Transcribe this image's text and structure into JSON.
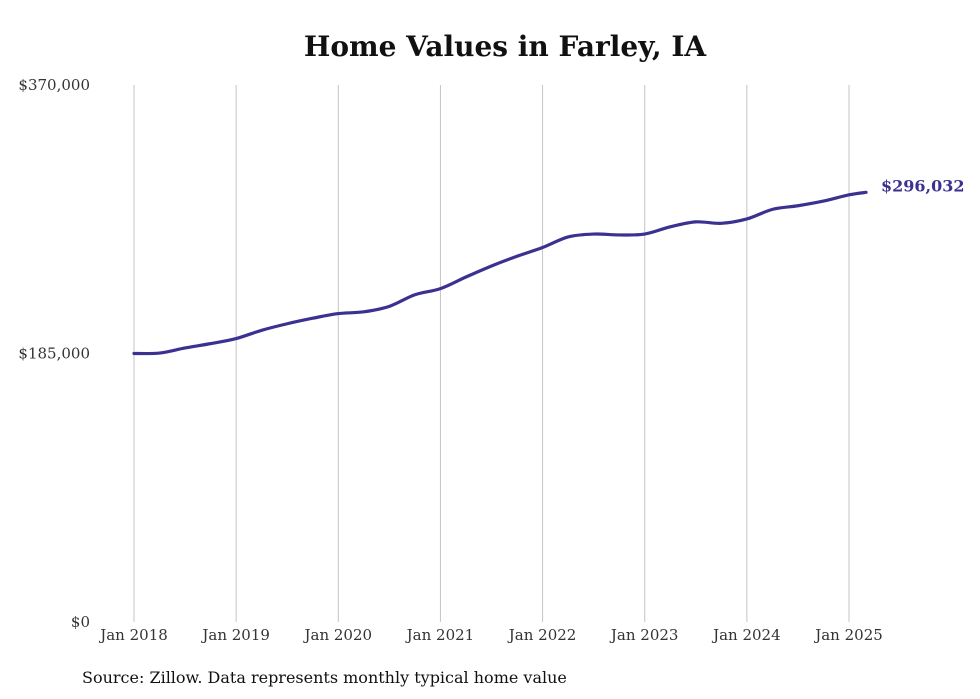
{
  "chart_data": {
    "type": "line",
    "title": "Home Values in Farley, IA",
    "xlabel": "",
    "ylabel": "",
    "ylim": [
      0,
      370000
    ],
    "y_ticks": [
      "$0",
      "$185,000",
      "$370,000"
    ],
    "y_tick_values": [
      0,
      185000,
      370000
    ],
    "x_ticks": [
      "Jan 2018",
      "Jan 2019",
      "Jan 2020",
      "Jan 2021",
      "Jan 2022",
      "Jan 2023",
      "Jan 2024",
      "Jan 2025"
    ],
    "x_tick_dates": [
      "2018-01",
      "2019-01",
      "2020-01",
      "2021-01",
      "2022-01",
      "2023-01",
      "2024-01",
      "2025-01"
    ],
    "grid": "vertical",
    "line_color": "#3b3191",
    "end_label": "$296,032",
    "series": [
      {
        "x": [
          "2018-01",
          "2018-04",
          "2018-07",
          "2018-10",
          "2019-01",
          "2019-04",
          "2019-07",
          "2019-10",
          "2020-01",
          "2020-04",
          "2020-07",
          "2020-10",
          "2021-01",
          "2021-04",
          "2021-07",
          "2021-10",
          "2022-01",
          "2022-04",
          "2022-07",
          "2022-10",
          "2023-01",
          "2023-04",
          "2023-07",
          "2023-10",
          "2024-01",
          "2024-04",
          "2024-07",
          "2024-10",
          "2025-01",
          "2025-03"
        ],
        "values": [
          185000,
          185300,
          188800,
          191800,
          195300,
          201000,
          205500,
          209300,
          212500,
          213700,
          217500,
          225500,
          229700,
          237700,
          245300,
          252000,
          258000,
          265300,
          267300,
          266700,
          267300,
          272300,
          275700,
          274700,
          277700,
          284300,
          286800,
          290000,
          294300,
          296032
        ]
      }
    ]
  },
  "source_note": "Source: Zillow. Data represents monthly typical home value"
}
